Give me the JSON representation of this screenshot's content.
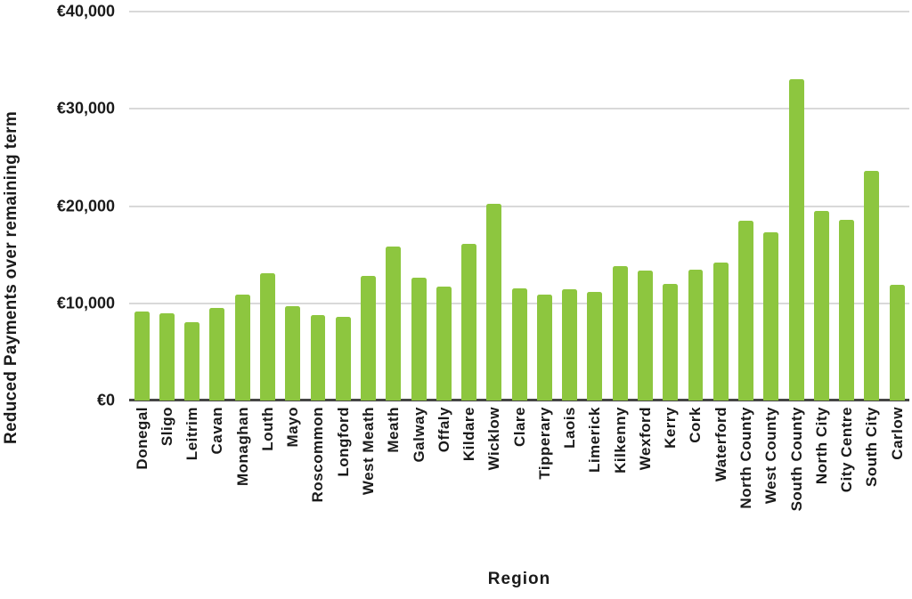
{
  "chart_data": {
    "type": "bar",
    "title": "",
    "xlabel": "Region",
    "ylabel": "Reduced Payments over remaining term",
    "categories": [
      "Donegal",
      "Sligo",
      "Leitrim",
      "Cavan",
      "Monaghan",
      "Louth",
      "Mayo",
      "Roscommon",
      "Longford",
      "West Meath",
      "Meath",
      "Galway",
      "Offaly",
      "Kildare",
      "Wicklow",
      "Clare",
      "Tipperary",
      "Laois",
      "Limerick",
      "Kilkenny",
      "Wexford",
      "Kerry",
      "Cork",
      "Waterford",
      "North County",
      "West County",
      "South County",
      "North City",
      "City Centre",
      "South City",
      "Carlow"
    ],
    "values": [
      9200,
      9000,
      8100,
      9500,
      10900,
      13100,
      9700,
      8800,
      8600,
      12800,
      15800,
      12600,
      11700,
      16100,
      20200,
      11500,
      10900,
      11400,
      11200,
      13800,
      13400,
      12000,
      13500,
      14200,
      18500,
      17300,
      33000,
      19500,
      18600,
      23600,
      11900
    ],
    "ylim": [
      0,
      40000
    ],
    "ytick_interval": 10000,
    "ytick_labels": [
      "€0",
      "€10,000",
      "€20,000",
      "€30,000",
      "€40,000"
    ],
    "grid": "horizontal",
    "legend": false,
    "colors": {
      "bar": "#8dc63f",
      "gridline": "#d9d9d9",
      "axis_line": "#454545",
      "text": "#1a1a1a"
    }
  }
}
